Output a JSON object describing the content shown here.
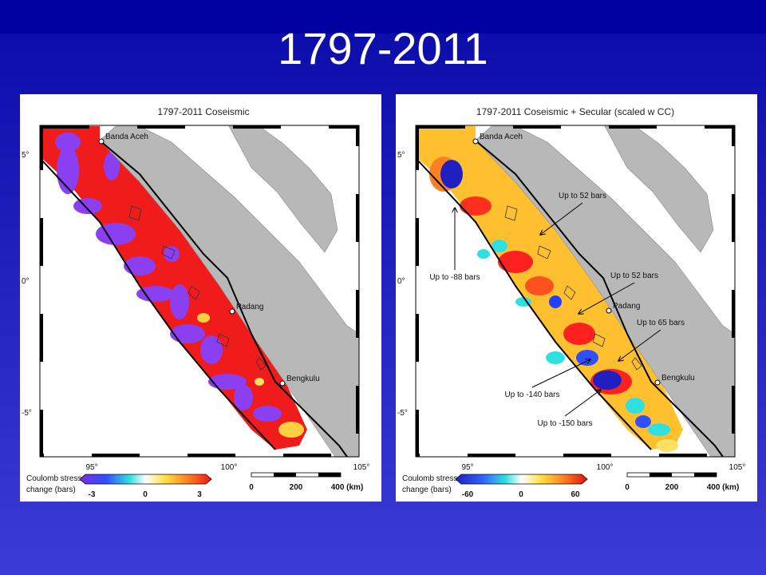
{
  "title": "1797-2011",
  "panels": [
    {
      "title": "1797-2011  Coseismic",
      "cities": [
        "Banda Aceh",
        "Padang",
        "Bengkulu"
      ],
      "lat_labels": [
        "5°",
        "0°",
        "-5°"
      ],
      "lon_labels": [
        "95°",
        "100°",
        "105°"
      ],
      "colorbar": {
        "label_lines": [
          "Coulomb stress",
          "change (bars)"
        ],
        "ticks": [
          -3,
          0,
          3
        ]
      },
      "scale": {
        "ticks": [
          0,
          200,
          "400 (km)"
        ]
      }
    },
    {
      "title": "1797-2011  Coseismic + Secular (scaled w CC)",
      "cities": [
        "Banda Aceh",
        "Padang",
        "Bengkulu"
      ],
      "lat_labels": [
        "5°",
        "0°",
        "-5°"
      ],
      "lon_labels": [
        "95°",
        "100°",
        "105°"
      ],
      "colorbar": {
        "label_lines": [
          "Coulomb stress",
          "change (bars)"
        ],
        "ticks": [
          -60,
          0,
          60
        ]
      },
      "scale": {
        "ticks": [
          0,
          200,
          "400 (km)"
        ]
      },
      "annotations": [
        "Up to 52 bars",
        "Up to -88 bars",
        "Up to 52 bars",
        "Up to 65 bars",
        "Up to -140 bars",
        "Up to -150 bars"
      ]
    }
  ]
}
